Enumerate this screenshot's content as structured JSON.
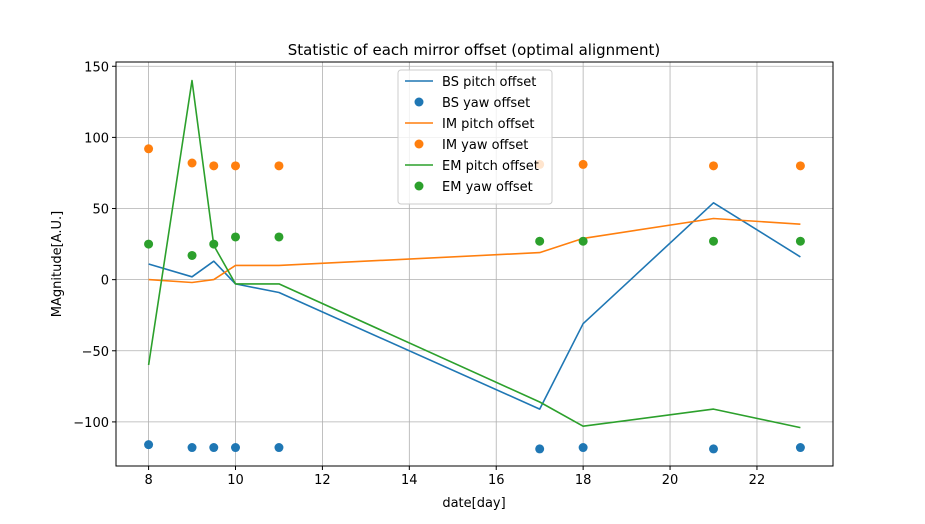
{
  "chart_data": {
    "type": "line",
    "title": "Statistic of each mirror offset (optimal alignment)",
    "xlabel": "date[day]",
    "ylabel": "MAgnitude[A.U.]",
    "xlim": [
      7.25,
      23.75
    ],
    "ylim": [
      -131,
      153
    ],
    "xticks": [
      8,
      10,
      12,
      14,
      16,
      18,
      20,
      22
    ],
    "yticks": [
      -100,
      -50,
      0,
      50,
      100,
      150
    ],
    "xtick_labels": [
      "8",
      "10",
      "12",
      "14",
      "16",
      "18",
      "20",
      "22"
    ],
    "ytick_labels": [
      "−100",
      "−50",
      "0",
      "50",
      "100",
      "150"
    ],
    "grid": true,
    "legend_position": "top-center",
    "x": [
      8,
      9,
      9.5,
      10,
      11,
      17,
      18,
      21,
      23
    ],
    "series": [
      {
        "name": "BS pitch offset",
        "kind": "line",
        "color": "#1f77b4",
        "values": [
          11,
          2,
          13,
          -3,
          -9,
          -91,
          -31,
          54,
          16
        ]
      },
      {
        "name": "BS yaw offset",
        "kind": "scatter",
        "color": "#1f77b4",
        "values": [
          -116,
          -118,
          -118,
          -118,
          -118,
          -119,
          -118,
          -119,
          -118
        ]
      },
      {
        "name": "IM pitch offset",
        "kind": "line",
        "color": "#ff7f0e",
        "values": [
          0,
          -2,
          0,
          10,
          10,
          19,
          29,
          43,
          39
        ]
      },
      {
        "name": "IM yaw offset",
        "kind": "scatter",
        "color": "#ff7f0e",
        "values": [
          92,
          82,
          80,
          80,
          80,
          81,
          81,
          80,
          80
        ]
      },
      {
        "name": "EM pitch offset",
        "kind": "line",
        "color": "#2ca02c",
        "values": [
          -60,
          140,
          24,
          -3,
          -3,
          -86,
          -103,
          -91,
          -104
        ]
      },
      {
        "name": "EM yaw offset",
        "kind": "scatter",
        "color": "#2ca02c",
        "values": [
          25,
          17,
          25,
          30,
          30,
          27,
          27,
          27,
          27
        ]
      }
    ]
  }
}
